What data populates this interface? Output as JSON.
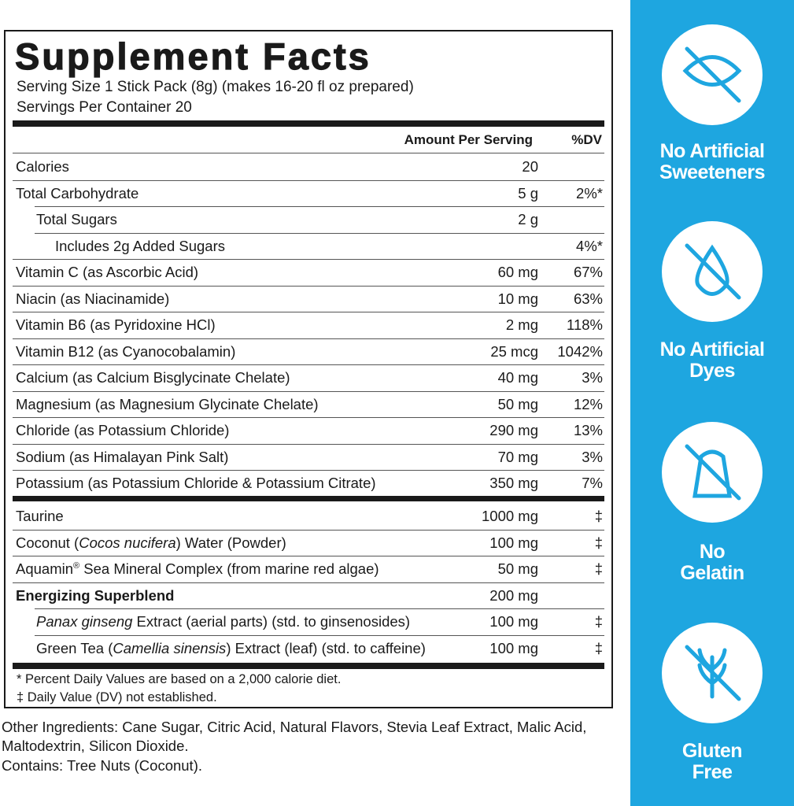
{
  "label": {
    "title": "Supplement Facts",
    "serving_size": "Serving Size 1 Stick Pack (8g) (makes 16-20 fl oz prepared)",
    "servings_per_container": "Servings Per Container 20",
    "header_amount": "Amount Per Serving",
    "header_dv": "%DV",
    "rows": [
      {
        "name": [
          "Calories"
        ],
        "amount": "20",
        "dv": ""
      },
      {
        "name": [
          "Total Carbohydrate"
        ],
        "amount": "5 g",
        "dv": "2%*"
      },
      {
        "name": [
          "Total Sugars"
        ],
        "amount": "2 g",
        "dv": ""
      },
      {
        "name": [
          "Includes 2g Added Sugars"
        ],
        "amount": "",
        "dv": "4%*"
      },
      {
        "name": [
          "Vitamin C (as Ascorbic Acid)"
        ],
        "amount": "60 mg",
        "dv": "67%"
      },
      {
        "name": [
          "Niacin (as Niacinamide)"
        ],
        "amount": "10 mg",
        "dv": "63%"
      },
      {
        "name": [
          "Vitamin B6 (as Pyridoxine HCl)"
        ],
        "amount": "2 mg",
        "dv": "118%"
      },
      {
        "name": [
          "Vitamin B12 (as Cyanocobalamin)"
        ],
        "amount": "25 mcg",
        "dv": "1042%"
      },
      {
        "name": [
          "Calcium (as Calcium Bisglycinate Chelate)"
        ],
        "amount": "40 mg",
        "dv": "3%"
      },
      {
        "name": [
          "Magnesium (as Magnesium Glycinate Chelate)"
        ],
        "amount": "50 mg",
        "dv": "12%"
      },
      {
        "name": [
          "Chloride (as Potassium Chloride)"
        ],
        "amount": "290 mg",
        "dv": "13%"
      },
      {
        "name": [
          "Sodium (as Himalayan Pink Salt)"
        ],
        "amount": "70 mg",
        "dv": "3%"
      },
      {
        "name": [
          "Potassium (as Potassium Chloride & Potassium Citrate)"
        ],
        "amount": "350 mg",
        "dv": "7%"
      }
    ],
    "other_rows": [
      {
        "name": [
          "Taurine"
        ],
        "amount": "1000 mg",
        "dv": "‡"
      },
      {
        "name": [
          "Coconut (",
          "Cocos nucifera",
          ") Water (Powder)"
        ],
        "amount": "100 mg",
        "dv": "‡"
      },
      {
        "name": [
          "Aquamin",
          "®",
          " Sea Mineral Complex (from marine red algae)"
        ],
        "amount": "50 mg",
        "dv": "‡"
      },
      {
        "name": [
          "Energizing Superblend"
        ],
        "amount": "200 mg",
        "dv": ""
      },
      {
        "name": [
          "Panax ginseng",
          " Extract (aerial parts) (std. to ginsenosides)"
        ],
        "amount": "100 mg",
        "dv": "‡"
      },
      {
        "name": [
          "Green Tea (",
          "Camellia sinensis",
          ") Extract (leaf) (std. to caffeine)"
        ],
        "amount": "100 mg",
        "dv": "‡"
      }
    ],
    "footnotes": [
      "* Percent Daily Values are based on a 2,000 calorie diet.",
      "‡ Daily Value (DV) not established."
    ]
  },
  "other_ingredients": "Other Ingredients: Cane Sugar, Citric Acid, Natural Flavors, Stevia Leaf Extract, Malic Acid, Maltodextrin, Silicon Dioxide.",
  "contains": "Contains: Tree Nuts (Coconut).",
  "badges": [
    {
      "label": [
        "No Artificial",
        "Sweeteners"
      ]
    },
    {
      "label": [
        "No Artificial",
        "Dyes"
      ]
    },
    {
      "label": [
        "No",
        "Gelatin"
      ]
    },
    {
      "label": [
        "Gluten",
        "Free"
      ]
    }
  ]
}
